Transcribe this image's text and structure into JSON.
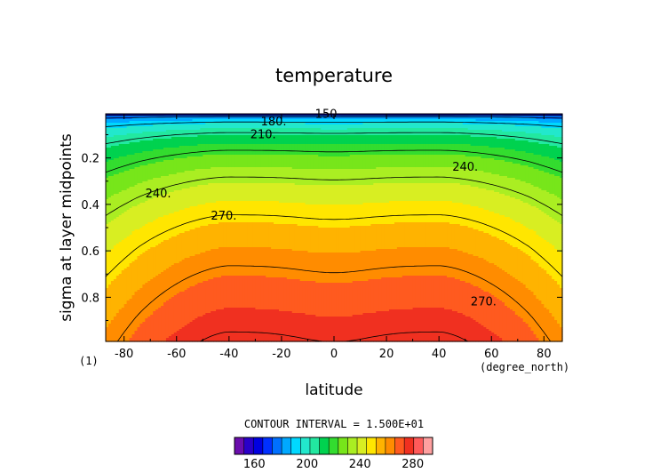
{
  "chart_data": {
    "type": "contour",
    "title": "temperature",
    "xlabel": "latitude",
    "ylabel": "sigma at layer midpoints",
    "x_units": "(degree_north)",
    "corner_label": "(1)",
    "xlim": [
      -87,
      87
    ],
    "ylim": [
      0.99,
      0.01
    ],
    "x_ticks": [
      -80,
      -60,
      -40,
      -20,
      0,
      20,
      40,
      60,
      80
    ],
    "x_tick_labels": [
      "-80",
      "-60",
      "-40",
      "-20",
      "0",
      "20",
      "40",
      "60",
      "80"
    ],
    "y_ticks": [
      0.2,
      0.4,
      0.6,
      0.8
    ],
    "y_tick_labels": [
      "0.2",
      "0.4",
      "0.6",
      "0.8"
    ],
    "contour_interval_text": "CONTOUR INTERVAL = 1.500E+01",
    "contour_labels": [
      {
        "text": "150",
        "x": -3,
        "y": 0.012
      },
      {
        "text": "180.",
        "x": -23,
        "y": 0.045
      },
      {
        "text": "210.",
        "x": -27,
        "y": 0.1
      },
      {
        "text": "240.",
        "x": 50,
        "y": 0.24
      },
      {
        "text": "240.",
        "x": -67,
        "y": 0.355
      },
      {
        "text": "270.",
        "x": -42,
        "y": 0.45
      },
      {
        "text": "270.",
        "x": 57,
        "y": 0.82
      }
    ],
    "colorbar": {
      "range": [
        145,
        295
      ],
      "levels": [
        145,
        152.5,
        160,
        167.5,
        175,
        182.5,
        190,
        197.5,
        205,
        212.5,
        220,
        227.5,
        235,
        242.5,
        250,
        257.5,
        265,
        272.5,
        280,
        287.5,
        295
      ],
      "colors": [
        "#6a0dad",
        "#2a00c8",
        "#0000e0",
        "#0030ff",
        "#0070ff",
        "#00a8ff",
        "#00d8ff",
        "#22e8cc",
        "#22e8a0",
        "#00d24f",
        "#33dc2f",
        "#77e61a",
        "#aaee22",
        "#d8ee22",
        "#ffe600",
        "#ffb300",
        "#ff8c00",
        "#ff5a1f",
        "#f03020",
        "#ff5a5a",
        "#ffa0a0"
      ],
      "tick_values": [
        160,
        200,
        240,
        280
      ],
      "tick_labels": [
        "160",
        "200",
        "240",
        "280"
      ]
    },
    "field_model": {
      "top_temp": 148,
      "mid_lat_temp": 287,
      "equator_temp": 285,
      "pole_temp": 265
    },
    "grid": false,
    "legend": "colorbar-bottom"
  }
}
